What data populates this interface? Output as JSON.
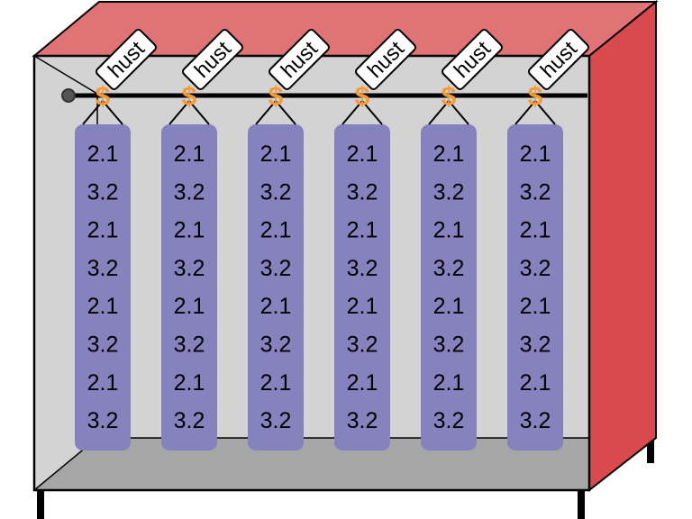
{
  "colors": {
    "top_face": "#e07474",
    "side_face": "#d94a4d",
    "back_wall": "#d3d3d3",
    "floor": "#a6a6a6",
    "rod": "#000000",
    "hook": "#f39c35",
    "garment": "#8582be",
    "tag_fill": "#ffffff",
    "outline": "#000000"
  },
  "rod": {
    "end_cap_icon": "circle-end-cap"
  },
  "hangers": [
    {
      "tag": "hust",
      "hook_symbol": "$",
      "values": [
        "2.1",
        "3.2",
        "2.1",
        "3.2",
        "2.1",
        "3.2",
        "2.1",
        "3.2"
      ]
    },
    {
      "tag": "hust",
      "hook_symbol": "$",
      "values": [
        "2.1",
        "3.2",
        "2.1",
        "3.2",
        "2.1",
        "3.2",
        "2.1",
        "3.2"
      ]
    },
    {
      "tag": "hust",
      "hook_symbol": "$",
      "values": [
        "2.1",
        "3.2",
        "2.1",
        "3.2",
        "2.1",
        "3.2",
        "2.1",
        "3.2"
      ]
    },
    {
      "tag": "hust",
      "hook_symbol": "$",
      "values": [
        "2.1",
        "3.2",
        "2.1",
        "3.2",
        "2.1",
        "3.2",
        "2.1",
        "3.2"
      ]
    },
    {
      "tag": "hust",
      "hook_symbol": "$",
      "values": [
        "2.1",
        "3.2",
        "2.1",
        "3.2",
        "2.1",
        "3.2",
        "2.1",
        "3.2"
      ]
    },
    {
      "tag": "hust",
      "hook_symbol": "$",
      "values": [
        "2.1",
        "3.2",
        "2.1",
        "3.2",
        "2.1",
        "3.2",
        "2.1",
        "3.2"
      ]
    }
  ]
}
